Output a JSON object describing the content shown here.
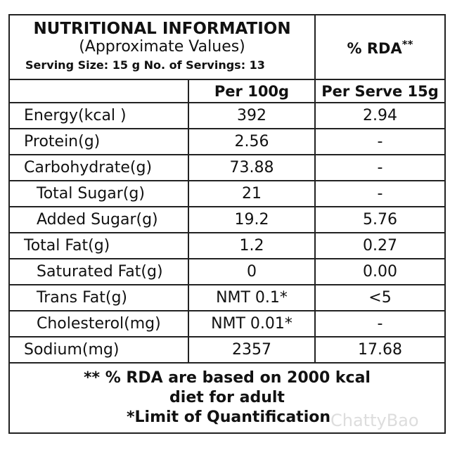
{
  "header": {
    "title": "NUTRITIONAL INFORMATION",
    "subtitle": "(Approximate Values)",
    "serving_line": "Serving Size:  15 g   No. of Servings: 13",
    "rda_title": "% RDA",
    "rda_mark": "**"
  },
  "columns": [
    "Per 100g",
    "Per Serve 15g"
  ],
  "rows": [
    [
      "Energy(kcal )",
      "392",
      "2.94"
    ],
    [
      "Protein(g)",
      "2.56",
      "-"
    ],
    [
      "Carbohydrate(g)",
      "73.88",
      "-"
    ],
    [
      "Total Sugar(g)",
      "21",
      "-"
    ],
    [
      "Added Sugar(g)",
      "19.2",
      "5.76"
    ],
    [
      "Total Fat(g)",
      "1.2",
      "0.27"
    ],
    [
      "Saturated Fat(g)",
      "0",
      "0.00"
    ],
    [
      "Trans Fat(g)",
      "NMT 0.1*",
      "<5"
    ],
    [
      "Cholesterol(mg)",
      "NMT 0.01*",
      "-"
    ],
    [
      "Sodium(mg)",
      "2357",
      "17.68"
    ]
  ],
  "footer": [
    "** % RDA are based on 2000 kcal",
    "diet for adult",
    "*Limit of Quantification"
  ],
  "watermark": "ChattyBao"
}
